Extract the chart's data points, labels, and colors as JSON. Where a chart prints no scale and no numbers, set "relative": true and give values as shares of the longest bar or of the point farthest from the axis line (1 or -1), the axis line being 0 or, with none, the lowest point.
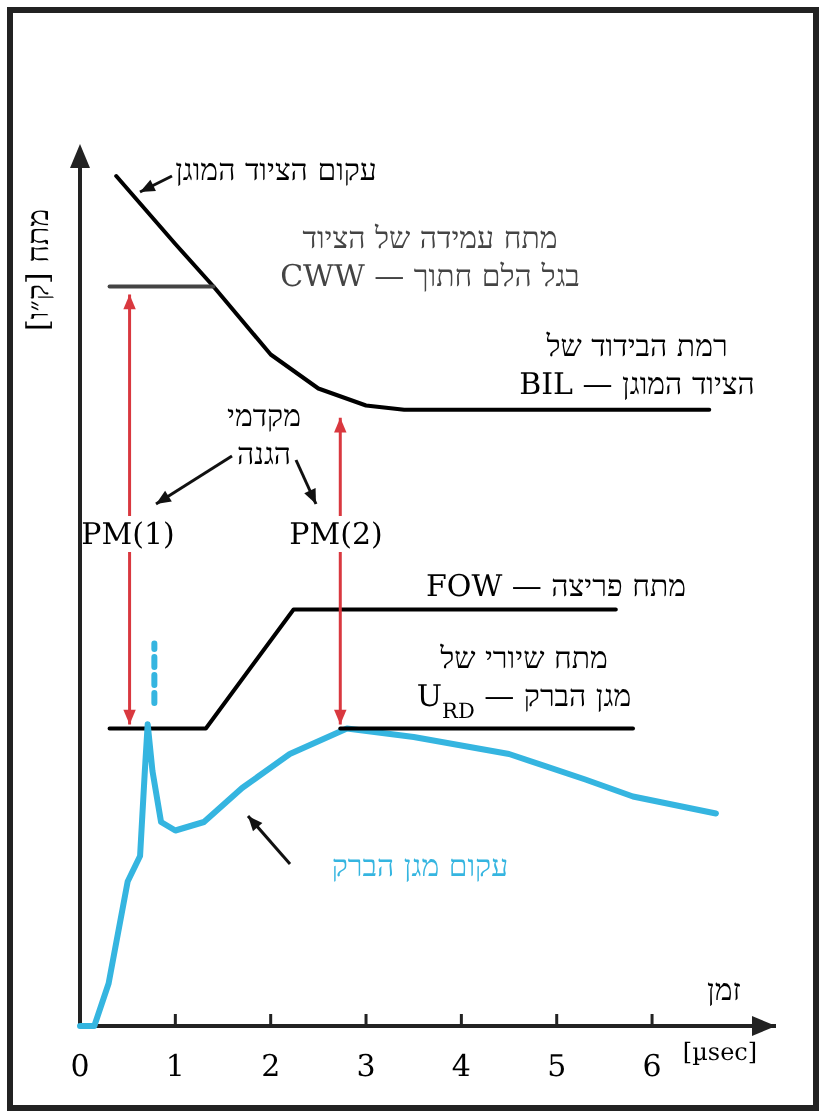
{
  "chart_data": {
    "type": "line",
    "relative": true,
    "xlabel": "זמן",
    "ylabel": "מתח [ק״ו]",
    "xlim": [
      0,
      7.3
    ],
    "xticks": [
      0,
      1,
      2,
      3,
      4,
      5,
      6
    ],
    "tick_labels": "x",
    "grid": false,
    "marker": "none",
    "series": [
      {
        "name": "עקום הציוד המוגן",
        "color": "#000000",
        "x": [
          0.38,
          1.0,
          1.4,
          2.0,
          2.5,
          3.0,
          3.4,
          6.6
        ],
        "values": [
          1.0,
          0.92,
          0.87,
          0.79,
          0.75,
          0.73,
          0.725,
          0.725
        ]
      },
      {
        "name": "מתח עמידה של הציוד בגל הלם חתוך — CWW",
        "color": "#444444",
        "x": [
          0.31,
          1.4
        ],
        "values": [
          0.87,
          0.87
        ]
      },
      {
        "name": "מתח פריצה — FOW",
        "color": "#000000",
        "x": [
          0.31,
          1.32,
          2.24,
          5.62
        ],
        "values": [
          0.35,
          0.35,
          0.49,
          0.49
        ]
      },
      {
        "name": "עקום מגן הברק",
        "color": "#35b5e0",
        "x": [
          0,
          0.15,
          0.3,
          0.5,
          0.63,
          0.68,
          0.71,
          0.76,
          0.85,
          1.0,
          1.3,
          1.7,
          2.2,
          2.8,
          3.5,
          4.5,
          5.3,
          5.8,
          6.67
        ],
        "values": [
          0,
          0,
          0.05,
          0.17,
          0.2,
          0.3,
          0.355,
          0.3,
          0.24,
          0.23,
          0.24,
          0.28,
          0.32,
          0.35,
          0.34,
          0.32,
          0.29,
          0.27,
          0.25
        ]
      },
      {
        "name": "מתח שיורי של מגן הברק — U$_{RD}$",
        "color": "#000000",
        "x": [
          2.73,
          5.8
        ],
        "values": [
          0.35,
          0.35
        ]
      },
      {
        "color": "#35b5e0",
        "line_style": "dashed",
        "x": [
          0.78,
          0.78
        ],
        "values": [
          0.38,
          0.45
        ]
      }
    ],
    "annotations": [
      {
        "text": "רמת הבידוד של הציוד המוגן — BIL",
        "x": 4.5,
        "y": 0.725
      },
      "מקדמי הגנה",
      "PM(1)",
      "PM(2)",
      "[µsec]"
    ]
  }
}
